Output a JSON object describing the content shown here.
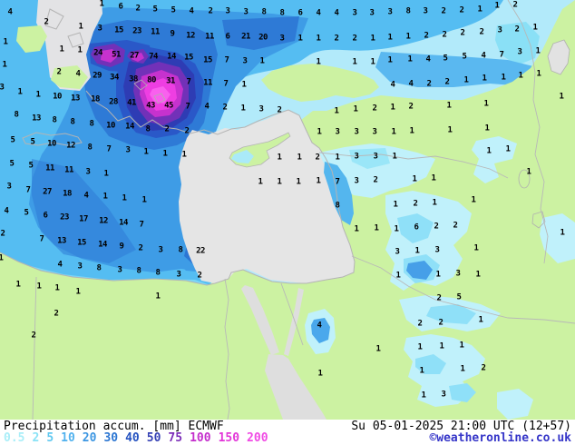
{
  "footer": {
    "title": "Precipitation accum.",
    "unit": "[mm]",
    "model": "ECMWF",
    "datetime": "Su 05-01-2025 21:00 UTC (12+57)",
    "credit": "©weatheronline.co.uk",
    "credit_color": "#3535c8",
    "text_color": "#000000"
  },
  "legend": {
    "items": [
      {
        "label": "0.5",
        "color": "#aaeef8"
      },
      {
        "label": "2",
        "color": "#8ae2f6"
      },
      {
        "label": "5",
        "color": "#60c8f0"
      },
      {
        "label": "10",
        "color": "#52b2ee"
      },
      {
        "label": "20",
        "color": "#3c96e2"
      },
      {
        "label": "30",
        "color": "#2c76d2"
      },
      {
        "label": "40",
        "color": "#2452c0"
      },
      {
        "label": "50",
        "color": "#3440b4"
      },
      {
        "label": "75",
        "color": "#7c2eb8"
      },
      {
        "label": "100",
        "color": "#c42ecc"
      },
      {
        "label": "150",
        "color": "#e236d8"
      },
      {
        "label": "200",
        "color": "#f04ae4"
      }
    ]
  },
  "map": {
    "palette": {
      "sea_no_precip": "#e5e5e5",
      "land_no_precip": "#ccf2a2",
      "precip_light": "#b2eafa",
      "precip_10": "#55bdf2",
      "precip_20": "#3e9ce6",
      "precip_30": "#2e7ad6",
      "precip_40": "#2a58c8",
      "precip_50": "#2e3cb4",
      "precip_75": "#7231b8",
      "precip_100": "#c632ce",
      "precip_150": "#ee3ee2",
      "precip_200": "#f960ee",
      "coastline": "#b4b4b4",
      "value_text": "#000000"
    },
    "values": [
      [
        11,
        14,
        "4"
      ],
      [
        112,
        5,
        "1"
      ],
      [
        133,
        8,
        "6"
      ],
      [
        152,
        10,
        "2"
      ],
      [
        171,
        11,
        "5"
      ],
      [
        191,
        12,
        "5"
      ],
      [
        211,
        13,
        "4"
      ],
      [
        232,
        13,
        "2"
      ],
      [
        251,
        13,
        "3"
      ],
      [
        271,
        14,
        "3"
      ],
      [
        291,
        14,
        "8"
      ],
      [
        311,
        15,
        "8"
      ],
      [
        331,
        15,
        "6"
      ],
      [
        351,
        15,
        "4"
      ],
      [
        371,
        15,
        "4"
      ],
      [
        391,
        15,
        "3"
      ],
      [
        410,
        15,
        "3"
      ],
      [
        430,
        14,
        "3"
      ],
      [
        450,
        13,
        "8"
      ],
      [
        469,
        13,
        "3"
      ],
      [
        489,
        13,
        "2"
      ],
      [
        509,
        12,
        "2"
      ],
      [
        529,
        11,
        "1"
      ],
      [
        548,
        7,
        "1"
      ],
      [
        568,
        6,
        "2"
      ],
      [
        51,
        25,
        "2"
      ],
      [
        89,
        30,
        "1"
      ],
      [
        110,
        32,
        "3"
      ],
      [
        131,
        34,
        "15"
      ],
      [
        151,
        35,
        "23"
      ],
      [
        171,
        36,
        "11"
      ],
      [
        190,
        38,
        "9"
      ],
      [
        210,
        40,
        "12"
      ],
      [
        231,
        41,
        "11"
      ],
      [
        251,
        41,
        "6"
      ],
      [
        271,
        41,
        "21"
      ],
      [
        290,
        42,
        "20"
      ],
      [
        311,
        43,
        "3"
      ],
      [
        331,
        43,
        "1"
      ],
      [
        351,
        43,
        "1"
      ],
      [
        371,
        43,
        "2"
      ],
      [
        391,
        43,
        "2"
      ],
      [
        411,
        43,
        "1"
      ],
      [
        430,
        42,
        "1"
      ],
      [
        450,
        41,
        "1"
      ],
      [
        470,
        40,
        "2"
      ],
      [
        490,
        39,
        "2"
      ],
      [
        510,
        37,
        "2"
      ],
      [
        531,
        36,
        "2"
      ],
      [
        551,
        34,
        "3"
      ],
      [
        570,
        33,
        "2"
      ],
      [
        590,
        31,
        "1"
      ],
      [
        6,
        47,
        "1"
      ],
      [
        68,
        55,
        "1"
      ],
      [
        88,
        56,
        "1"
      ],
      [
        108,
        59,
        "24"
      ],
      [
        128,
        61,
        "51"
      ],
      [
        148,
        62,
        "27"
      ],
      [
        169,
        63,
        "74"
      ],
      [
        189,
        63,
        "14"
      ],
      [
        208,
        64,
        "15"
      ],
      [
        229,
        67,
        "15"
      ],
      [
        250,
        67,
        "7"
      ],
      [
        270,
        68,
        "3"
      ],
      [
        289,
        68,
        "1"
      ],
      [
        351,
        69,
        "1"
      ],
      [
        391,
        69,
        "1"
      ],
      [
        411,
        69,
        "1"
      ],
      [
        430,
        67,
        "1"
      ],
      [
        452,
        66,
        "1"
      ],
      [
        472,
        66,
        "4"
      ],
      [
        491,
        65,
        "5"
      ],
      [
        512,
        63,
        "5"
      ],
      [
        533,
        62,
        "4"
      ],
      [
        553,
        61,
        "7"
      ],
      [
        573,
        58,
        "3"
      ],
      [
        593,
        57,
        "1"
      ],
      [
        5,
        72,
        "1"
      ],
      [
        65,
        80,
        "2"
      ],
      [
        86,
        82,
        "4"
      ],
      [
        107,
        84,
        "29"
      ],
      [
        126,
        86,
        "34"
      ],
      [
        147,
        88,
        "38"
      ],
      [
        167,
        89,
        "80"
      ],
      [
        188,
        90,
        "31"
      ],
      [
        208,
        91,
        "7"
      ],
      [
        229,
        92,
        "11"
      ],
      [
        249,
        93,
        "7"
      ],
      [
        269,
        94,
        "1"
      ],
      [
        433,
        94,
        "4"
      ],
      [
        453,
        93,
        "4"
      ],
      [
        473,
        93,
        "2"
      ],
      [
        493,
        91,
        "2"
      ],
      [
        514,
        89,
        "1"
      ],
      [
        534,
        87,
        "1"
      ],
      [
        555,
        86,
        "1"
      ],
      [
        574,
        84,
        "1"
      ],
      [
        594,
        82,
        "1"
      ],
      [
        619,
        107,
        "1"
      ],
      [
        2,
        97,
        "3"
      ],
      [
        22,
        102,
        "1"
      ],
      [
        42,
        105,
        "1"
      ],
      [
        63,
        107,
        "10"
      ],
      [
        83,
        109,
        "13"
      ],
      [
        105,
        110,
        "18"
      ],
      [
        125,
        113,
        "28"
      ],
      [
        145,
        114,
        "41"
      ],
      [
        166,
        117,
        "43"
      ],
      [
        186,
        117,
        "45"
      ],
      [
        207,
        118,
        "7"
      ],
      [
        228,
        118,
        "4"
      ],
      [
        248,
        119,
        "2"
      ],
      [
        268,
        120,
        "1"
      ],
      [
        288,
        121,
        "3"
      ],
      [
        308,
        122,
        "2"
      ],
      [
        371,
        123,
        "1"
      ],
      [
        392,
        121,
        "1"
      ],
      [
        413,
        120,
        "2"
      ],
      [
        433,
        119,
        "1"
      ],
      [
        453,
        118,
        "2"
      ],
      [
        495,
        117,
        "1"
      ],
      [
        536,
        115,
        "1"
      ],
      [
        18,
        127,
        "8"
      ],
      [
        40,
        131,
        "13"
      ],
      [
        60,
        133,
        "8"
      ],
      [
        80,
        135,
        "8"
      ],
      [
        101,
        137,
        "8"
      ],
      [
        122,
        139,
        "10"
      ],
      [
        143,
        140,
        "14"
      ],
      [
        163,
        143,
        "8"
      ],
      [
        184,
        143,
        "2"
      ],
      [
        206,
        145,
        "2"
      ],
      [
        352,
        146,
        "1"
      ],
      [
        372,
        146,
        "3"
      ],
      [
        393,
        146,
        "3"
      ],
      [
        413,
        146,
        "3"
      ],
      [
        434,
        146,
        "1"
      ],
      [
        454,
        145,
        "1"
      ],
      [
        496,
        144,
        "1"
      ],
      [
        537,
        142,
        "1"
      ],
      [
        14,
        155,
        "5"
      ],
      [
        36,
        157,
        "5"
      ],
      [
        57,
        159,
        "10"
      ],
      [
        78,
        161,
        "12"
      ],
      [
        99,
        163,
        "8"
      ],
      [
        120,
        165,
        "7"
      ],
      [
        141,
        166,
        "3"
      ],
      [
        161,
        168,
        "1"
      ],
      [
        182,
        170,
        "1"
      ],
      [
        203,
        171,
        "1"
      ],
      [
        308,
        174,
        "1"
      ],
      [
        330,
        174,
        "1"
      ],
      [
        350,
        174,
        "2"
      ],
      [
        372,
        174,
        "1"
      ],
      [
        393,
        173,
        "3"
      ],
      [
        414,
        173,
        "3"
      ],
      [
        435,
        173,
        "1"
      ],
      [
        539,
        167,
        "1"
      ],
      [
        560,
        165,
        "1"
      ],
      [
        13,
        181,
        "5"
      ],
      [
        34,
        183,
        "5"
      ],
      [
        55,
        186,
        "11"
      ],
      [
        76,
        188,
        "11"
      ],
      [
        97,
        190,
        "3"
      ],
      [
        117,
        192,
        "1"
      ],
      [
        287,
        201,
        "1"
      ],
      [
        308,
        201,
        "1"
      ],
      [
        329,
        201,
        "1"
      ],
      [
        351,
        200,
        "1"
      ],
      [
        372,
        201,
        "7"
      ],
      [
        393,
        200,
        "3"
      ],
      [
        414,
        199,
        "2"
      ],
      [
        457,
        198,
        "1"
      ],
      [
        478,
        197,
        "1"
      ],
      [
        583,
        190,
        "1"
      ],
      [
        10,
        206,
        "3"
      ],
      [
        31,
        210,
        "7"
      ],
      [
        52,
        212,
        "27"
      ],
      [
        74,
        214,
        "18"
      ],
      [
        95,
        216,
        "4"
      ],
      [
        116,
        217,
        "1"
      ],
      [
        137,
        219,
        "1"
      ],
      [
        159,
        221,
        "1"
      ],
      [
        372,
        227,
        "8"
      ],
      [
        436,
        226,
        "1"
      ],
      [
        458,
        225,
        "2"
      ],
      [
        479,
        224,
        "1"
      ],
      [
        522,
        221,
        "1"
      ],
      [
        7,
        233,
        "4"
      ],
      [
        29,
        235,
        "5"
      ],
      [
        50,
        238,
        "6"
      ],
      [
        71,
        240,
        "23"
      ],
      [
        92,
        242,
        "17"
      ],
      [
        114,
        244,
        "12"
      ],
      [
        136,
        246,
        "14"
      ],
      [
        156,
        248,
        "7"
      ],
      [
        393,
        253,
        "1"
      ],
      [
        415,
        252,
        "1"
      ],
      [
        437,
        253,
        "1"
      ],
      [
        459,
        251,
        "6"
      ],
      [
        481,
        250,
        "2"
      ],
      [
        502,
        249,
        "2"
      ],
      [
        620,
        257,
        "1"
      ],
      [
        3,
        258,
        "2"
      ],
      [
        46,
        264,
        "7"
      ],
      [
        68,
        266,
        "13"
      ],
      [
        90,
        268,
        "15"
      ],
      [
        113,
        270,
        "14"
      ],
      [
        134,
        272,
        "9"
      ],
      [
        155,
        274,
        "2"
      ],
      [
        177,
        276,
        "3"
      ],
      [
        199,
        276,
        "8"
      ],
      [
        221,
        277,
        "22"
      ],
      [
        438,
        278,
        "3"
      ],
      [
        460,
        277,
        "1"
      ],
      [
        482,
        276,
        "3"
      ],
      [
        525,
        274,
        "1"
      ],
      [
        1,
        285,
        "1"
      ],
      [
        66,
        292,
        "4"
      ],
      [
        88,
        294,
        "3"
      ],
      [
        109,
        296,
        "8"
      ],
      [
        132,
        298,
        "3"
      ],
      [
        153,
        299,
        "8"
      ],
      [
        174,
        301,
        "8"
      ],
      [
        197,
        303,
        "3"
      ],
      [
        220,
        304,
        "2"
      ],
      [
        439,
        304,
        "1"
      ],
      [
        483,
        303,
        "1"
      ],
      [
        505,
        302,
        "3"
      ],
      [
        527,
        303,
        "1"
      ],
      [
        20,
        314,
        "1"
      ],
      [
        43,
        316,
        "1"
      ],
      [
        63,
        318,
        "1"
      ],
      [
        86,
        322,
        "1"
      ],
      [
        174,
        327,
        "1"
      ],
      [
        484,
        329,
        "2"
      ],
      [
        506,
        328,
        "5"
      ],
      [
        62,
        346,
        "2"
      ],
      [
        352,
        359,
        "4"
      ],
      [
        463,
        357,
        "2"
      ],
      [
        486,
        356,
        "2"
      ],
      [
        530,
        353,
        "1"
      ],
      [
        37,
        370,
        "2"
      ],
      [
        417,
        385,
        "1"
      ],
      [
        463,
        383,
        "1"
      ],
      [
        487,
        382,
        "1"
      ],
      [
        509,
        381,
        "1"
      ],
      [
        353,
        412,
        "1"
      ],
      [
        465,
        409,
        "1"
      ],
      [
        510,
        407,
        "1"
      ],
      [
        533,
        406,
        "2"
      ],
      [
        467,
        436,
        "1"
      ],
      [
        489,
        435,
        "3"
      ]
    ]
  }
}
